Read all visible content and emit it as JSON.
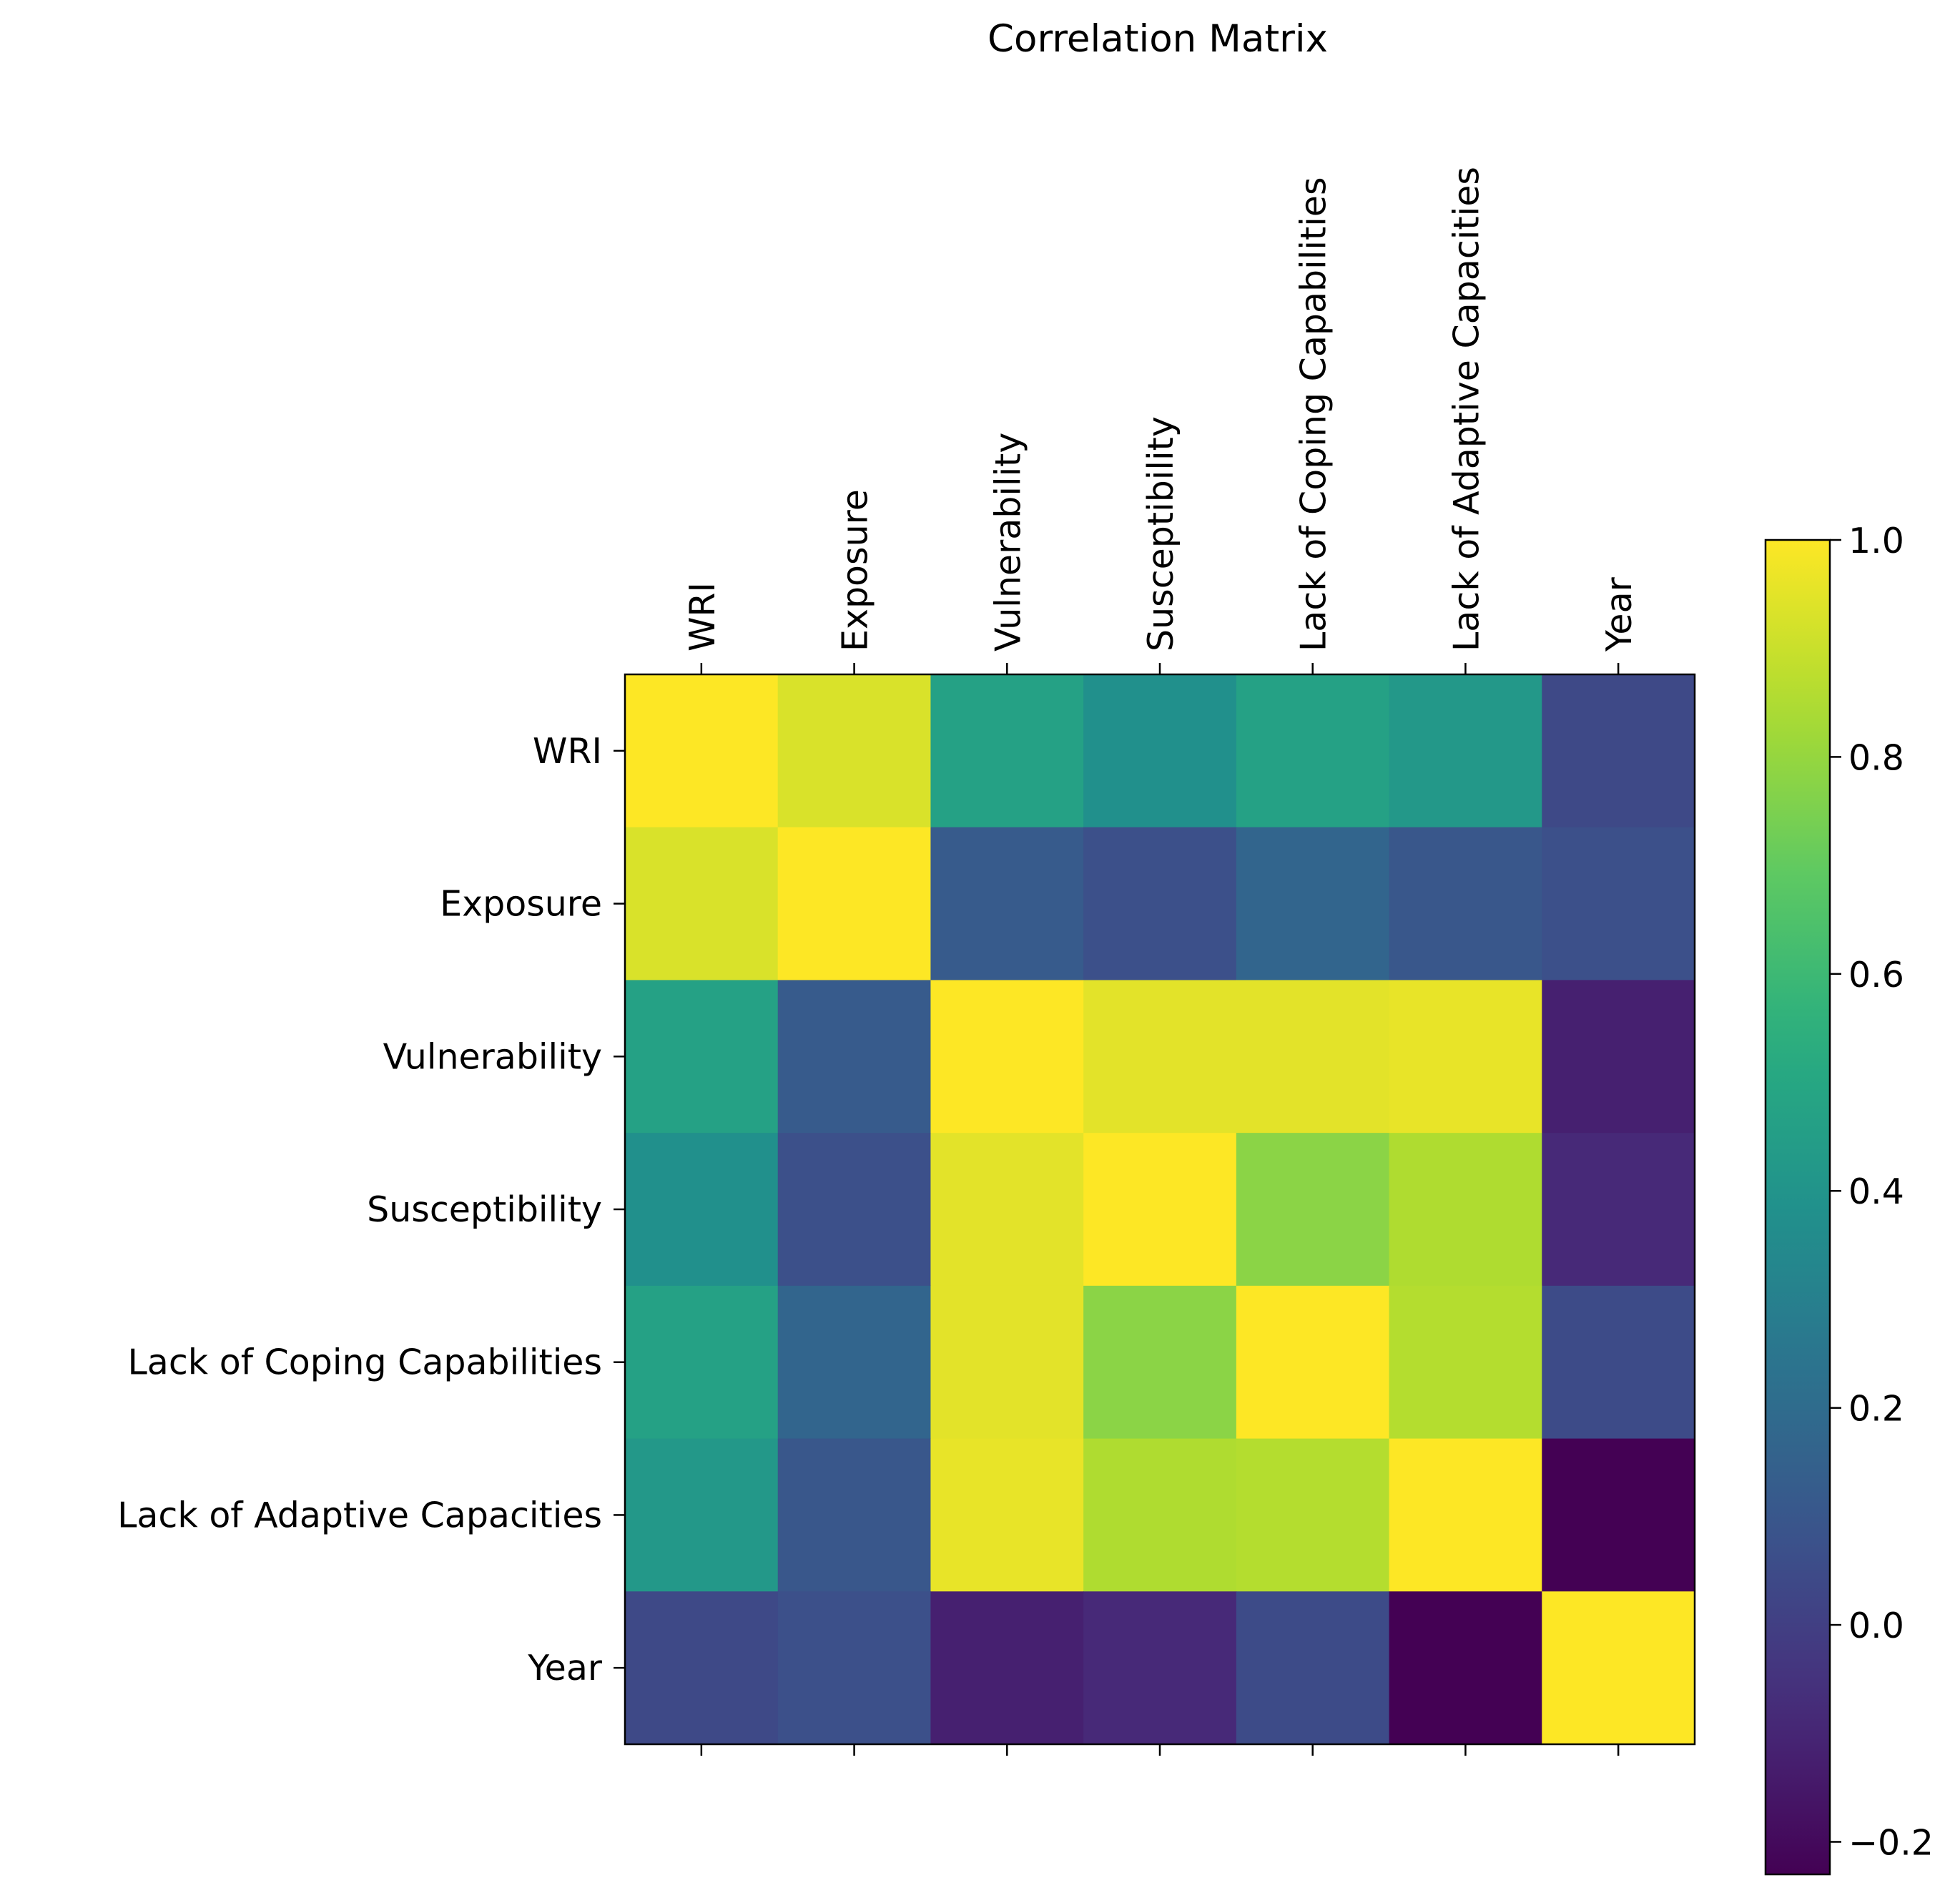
{
  "chart_data": {
    "type": "heatmap",
    "title": "Correlation Matrix",
    "labels": [
      "WRI",
      "Exposure",
      "Vulnerability",
      "Susceptibility",
      "Lack of Coping Capabilities",
      "Lack of Adaptive Capacities",
      "Year"
    ],
    "matrix": [
      [
        1.0,
        0.93,
        0.47,
        0.38,
        0.47,
        0.42,
        0.04
      ],
      [
        0.93,
        1.0,
        0.12,
        0.07,
        0.17,
        0.1,
        0.07
      ],
      [
        0.47,
        0.12,
        1.0,
        0.95,
        0.95,
        0.96,
        -0.12
      ],
      [
        0.38,
        0.07,
        0.95,
        1.0,
        0.78,
        0.85,
        -0.09
      ],
      [
        0.47,
        0.17,
        0.95,
        0.78,
        1.0,
        0.86,
        0.05
      ],
      [
        0.42,
        0.1,
        0.96,
        0.85,
        0.86,
        1.0,
        -0.23
      ],
      [
        0.04,
        0.07,
        -0.12,
        -0.09,
        0.05,
        -0.23,
        1.0
      ]
    ],
    "colormap": "viridis",
    "vmin": -0.23,
    "vmax": 1.0,
    "colorbar": {
      "ticks": [
        -0.2,
        0.0,
        0.2,
        0.4,
        0.6,
        0.8,
        1.0
      ],
      "tick_labels": [
        "−0.2",
        "0.0",
        "0.2",
        "0.4",
        "0.6",
        "0.8",
        "1.0"
      ]
    },
    "x_axis_position": "top",
    "grid": false
  }
}
